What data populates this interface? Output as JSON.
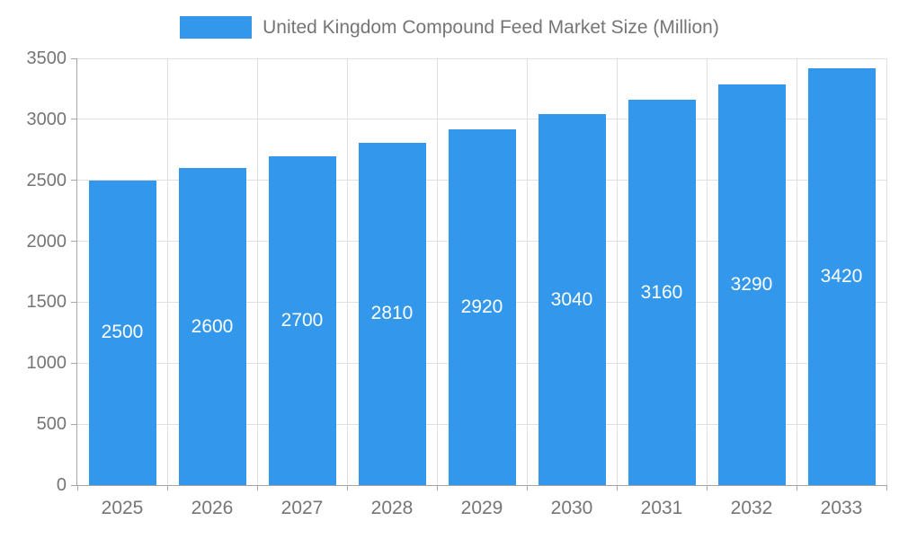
{
  "chart": {
    "legend_label": "United Kingdom Compound Feed Market Size (Million)",
    "colors": {
      "bar": "#3398EC",
      "bar_label": "#FFFFFF",
      "axis_text": "#757575",
      "grid_line": "#E0E0E0",
      "axis_line": "#A6A6A6"
    }
  },
  "chart_data": {
    "type": "bar",
    "title": "United Kingdom Compound Feed Market Size (Million)",
    "categories": [
      "2025",
      "2026",
      "2027",
      "2028",
      "2029",
      "2030",
      "2031",
      "2032",
      "2033"
    ],
    "values": [
      2500,
      2600,
      2700,
      2810,
      2920,
      3040,
      3160,
      3290,
      3420
    ],
    "xlabel": "",
    "ylabel": "",
    "ylim": [
      0,
      3500
    ],
    "yticks": [
      0,
      500,
      1000,
      1500,
      2000,
      2500,
      3000,
      3500
    ],
    "grid": true,
    "legend_position": "top",
    "value_labels": "inside-center"
  }
}
